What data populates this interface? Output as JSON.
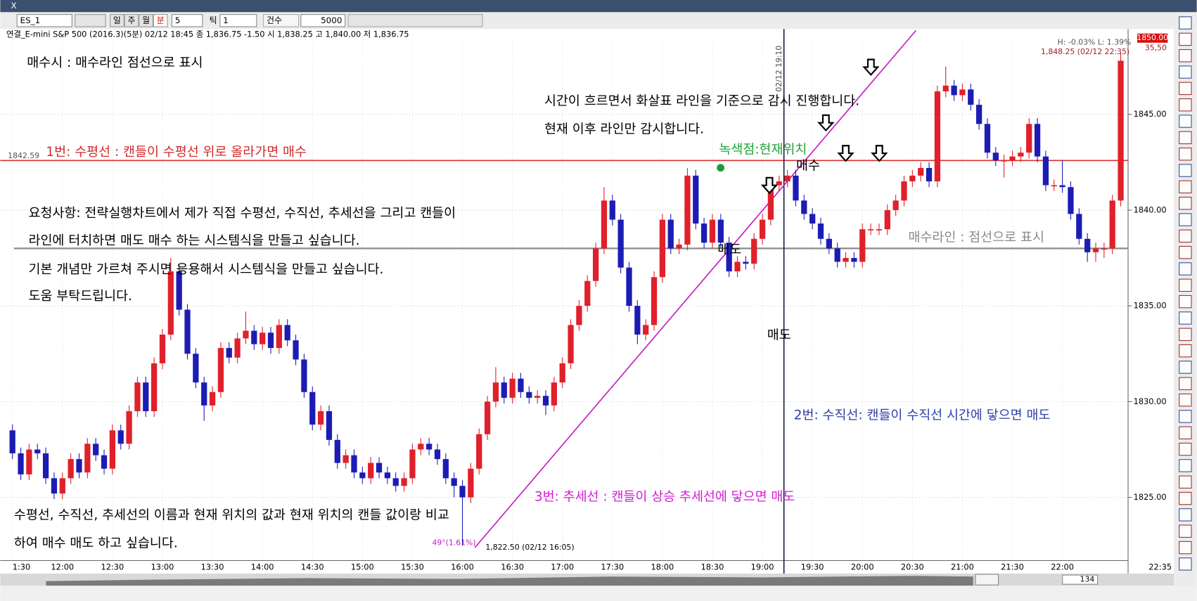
{
  "window_close": "X",
  "toolbar": {
    "symbol": "ES_1",
    "periods": [
      "일",
      "주",
      "월",
      "분"
    ],
    "interval": 5,
    "tick_label": "틱",
    "tick_value": 1,
    "count_label": "건수",
    "count": 5000
  },
  "info_line": "연결_E-mini S&P 500 (2016.3)(5분) 02/12 18:45  종 1,836.75 -1.50  시 1,838.25 고 1,840.00 저 1,836.75",
  "chart_data": {
    "type": "candlestick",
    "up_color": "#e0202a",
    "down_color": "#1c1cb4",
    "open": [
      1828.5,
      1827.3,
      1826.2,
      1827.5,
      1827.3,
      1826.0,
      1825.2,
      1826.0,
      1827.0,
      1826.3,
      1827.8,
      1827.2,
      1826.5,
      1828.5,
      1827.8,
      1829.5,
      1831.0,
      1829.5,
      1832.0,
      1833.5,
      1836.8,
      1834.8,
      1832.5,
      1831.0,
      1829.8,
      1830.5,
      1832.8,
      1832.3,
      1833.3,
      1833.7,
      1833.0,
      1833.6,
      1832.8,
      1834.0,
      1833.2,
      1832.2,
      1830.5,
      1828.8,
      1829.5,
      1828.0,
      1826.8,
      1827.2,
      1826.3,
      1826.0,
      1826.8,
      1826.3,
      1826.0,
      1825.6,
      1826.0,
      1827.5,
      1827.8,
      1827.5,
      1827.0,
      1826.0,
      1825.6,
      1825.0,
      1826.5,
      1828.3,
      1830.0,
      1831.0,
      1830.2,
      1831.2,
      1830.5,
      1830.2,
      1830.3,
      1829.8,
      1831.0,
      1832.0,
      1834.0,
      1835.0,
      1836.3,
      1838.0,
      1840.5,
      1839.5,
      1837.0,
      1835.0,
      1833.5,
      1834.0,
      1836.5,
      1839.5,
      1838.0,
      1838.2,
      1841.8,
      1839.3,
      1838.3,
      1839.5,
      1838.3,
      1836.8,
      1837.3,
      1837.2,
      1838.5,
      1839.5,
      1841.3,
      1841.5,
      1841.8,
      1840.5,
      1839.8,
      1839.3,
      1838.5,
      1838.0,
      1837.3,
      1837.5,
      1837.3,
      1839.0,
      1839.0,
      1839.0,
      1840.0,
      1840.5,
      1841.5,
      1841.8,
      1842.2,
      1841.5,
      1846.2,
      1846.5,
      1846.0,
      1846.3,
      1845.5,
      1844.5,
      1843.0,
      1842.6,
      1842.6,
      1842.8,
      1843.0,
      1844.5,
      1842.8,
      1841.3,
      1841.3,
      1841.2,
      1839.8,
      1838.5,
      1837.8,
      1838.0,
      1838.0,
      1840.5
    ],
    "high": [
      1828.8,
      1827.6,
      1827.8,
      1827.8,
      1827.6,
      1826.3,
      1826.3,
      1827.3,
      1827.3,
      1828.1,
      1828.1,
      1827.5,
      1828.8,
      1828.8,
      1829.8,
      1831.3,
      1831.3,
      1832.3,
      1833.8,
      1837.5,
      1837.1,
      1835.1,
      1832.8,
      1831.3,
      1830.8,
      1833.1,
      1833.1,
      1833.6,
      1834.7,
      1834.0,
      1833.9,
      1833.9,
      1834.3,
      1834.3,
      1833.5,
      1832.5,
      1830.8,
      1829.8,
      1829.8,
      1828.3,
      1827.5,
      1827.5,
      1826.6,
      1827.1,
      1827.1,
      1826.6,
      1826.3,
      1826.3,
      1827.8,
      1828.1,
      1828.1,
      1827.8,
      1827.3,
      1826.3,
      1825.9,
      1826.8,
      1828.6,
      1830.3,
      1831.8,
      1831.3,
      1831.5,
      1831.5,
      1830.8,
      1830.6,
      1830.6,
      1831.3,
      1832.3,
      1834.3,
      1835.3,
      1836.6,
      1838.3,
      1841.2,
      1840.8,
      1839.8,
      1837.3,
      1835.3,
      1834.3,
      1836.8,
      1839.8,
      1839.8,
      1838.5,
      1842.2,
      1842.1,
      1839.6,
      1839.8,
      1839.8,
      1838.6,
      1837.6,
      1837.6,
      1838.8,
      1839.8,
      1841.6,
      1841.8,
      1842.1,
      1842.1,
      1840.8,
      1840.1,
      1839.6,
      1838.8,
      1838.3,
      1837.8,
      1837.8,
      1839.3,
      1839.3,
      1839.3,
      1840.3,
      1840.8,
      1841.8,
      1842.1,
      1842.5,
      1842.5,
      1846.5,
      1847.5,
      1846.8,
      1846.6,
      1846.6,
      1845.8,
      1844.8,
      1843.3,
      1842.9,
      1843.1,
      1843.3,
      1844.8,
      1844.8,
      1843.1,
      1841.6,
      1842.6,
      1841.5,
      1840.1,
      1838.8,
      1838.3,
      1838.3,
      1840.8,
      1848.2
    ],
    "low": [
      1827.0,
      1825.9,
      1825.9,
      1827.0,
      1825.7,
      1824.9,
      1824.9,
      1825.7,
      1826.0,
      1826.0,
      1826.9,
      1826.2,
      1826.2,
      1827.5,
      1827.5,
      1829.2,
      1829.2,
      1829.2,
      1831.7,
      1833.2,
      1834.5,
      1832.2,
      1830.7,
      1829.0,
      1829.5,
      1830.2,
      1832.0,
      1832.0,
      1833.0,
      1832.7,
      1832.7,
      1832.5,
      1832.5,
      1832.9,
      1831.9,
      1830.2,
      1828.5,
      1828.5,
      1827.7,
      1826.5,
      1826.5,
      1826.0,
      1825.7,
      1825.7,
      1826.0,
      1825.7,
      1825.3,
      1825.3,
      1825.7,
      1827.2,
      1827.2,
      1826.7,
      1825.7,
      1825.0,
      1822.5,
      1824.7,
      1826.2,
      1828.0,
      1829.7,
      1829.9,
      1829.9,
      1830.2,
      1829.9,
      1829.9,
      1829.3,
      1829.5,
      1830.7,
      1831.7,
      1833.7,
      1834.7,
      1836.0,
      1837.7,
      1839.2,
      1836.7,
      1834.7,
      1833.0,
      1833.2,
      1833.7,
      1836.2,
      1837.7,
      1837.7,
      1837.9,
      1839.0,
      1838.0,
      1838.0,
      1838.0,
      1836.5,
      1836.5,
      1836.9,
      1836.9,
      1838.2,
      1839.2,
      1841.0,
      1841.2,
      1840.2,
      1839.5,
      1839.0,
      1838.2,
      1837.7,
      1837.0,
      1837.0,
      1837.0,
      1837.0,
      1838.7,
      1838.7,
      1838.7,
      1839.7,
      1840.2,
      1841.2,
      1841.5,
      1841.2,
      1841.2,
      1845.9,
      1845.7,
      1845.7,
      1845.2,
      1844.2,
      1842.7,
      1842.3,
      1841.7,
      1842.3,
      1842.5,
      1842.7,
      1842.5,
      1841.0,
      1841.0,
      1840.9,
      1839.5,
      1838.2,
      1837.3,
      1837.3,
      1837.5,
      1837.7,
      1840.2
    ],
    "close": [
      1827.3,
      1826.2,
      1827.5,
      1827.3,
      1826.0,
      1825.2,
      1826.0,
      1827.0,
      1826.3,
      1827.8,
      1827.2,
      1826.5,
      1828.5,
      1827.8,
      1829.5,
      1831.0,
      1829.5,
      1832.0,
      1833.5,
      1836.8,
      1834.8,
      1832.5,
      1831.0,
      1829.8,
      1830.5,
      1832.8,
      1832.3,
      1833.3,
      1833.7,
      1833.0,
      1833.6,
      1832.8,
      1834.0,
      1833.2,
      1832.2,
      1830.5,
      1828.8,
      1829.5,
      1828.0,
      1826.8,
      1827.2,
      1826.3,
      1826.0,
      1826.8,
      1826.3,
      1826.0,
      1825.6,
      1826.0,
      1827.5,
      1827.8,
      1827.5,
      1827.0,
      1826.0,
      1825.6,
      1825.0,
      1826.5,
      1828.3,
      1830.0,
      1831.0,
      1830.2,
      1831.2,
      1830.5,
      1830.2,
      1830.3,
      1829.8,
      1831.0,
      1832.0,
      1834.0,
      1835.0,
      1836.3,
      1838.0,
      1840.5,
      1839.5,
      1837.0,
      1835.0,
      1833.5,
      1834.0,
      1836.5,
      1839.5,
      1838.0,
      1838.2,
      1841.8,
      1839.3,
      1838.3,
      1839.5,
      1838.3,
      1836.8,
      1837.3,
      1837.2,
      1838.5,
      1839.5,
      1841.3,
      1841.5,
      1841.8,
      1840.5,
      1839.8,
      1839.3,
      1838.5,
      1838.0,
      1837.3,
      1837.5,
      1837.3,
      1839.0,
      1839.0,
      1839.0,
      1840.0,
      1840.5,
      1841.5,
      1841.8,
      1842.2,
      1841.5,
      1846.2,
      1846.5,
      1846.0,
      1846.3,
      1845.5,
      1844.5,
      1843.0,
      1842.6,
      1842.6,
      1842.8,
      1843.0,
      1844.5,
      1842.8,
      1841.3,
      1841.3,
      1841.2,
      1839.8,
      1838.5,
      1837.8,
      1838.0,
      1838.0,
      1840.5,
      1847.8
    ],
    "ylim": [
      1821.7,
      1848.9
    ],
    "yticks": [
      {
        "value": 1825,
        "label": "1825.00"
      },
      {
        "value": 1830,
        "label": "1830.00"
      },
      {
        "value": 1835,
        "label": "1835.00"
      },
      {
        "value": 1840,
        "label": "1840.00"
      },
      {
        "value": 1845,
        "label": "1845.00"
      }
    ],
    "time_labels": [
      "1:30",
      "12:00",
      "12:30",
      "13:00",
      "13:30",
      "14:00",
      "14:30",
      "15:00",
      "15:30",
      "16:00",
      "16:30",
      "17:00",
      "17:30",
      "18:00",
      "18:30",
      "19:00",
      "19:30",
      "20:00",
      "20:30",
      "21:00",
      "21:30",
      "22:00"
    ],
    "last_time": "22:35",
    "hline": {
      "value": 1842.59,
      "color": "#d9302f"
    },
    "buy_line": {
      "value": 1838.0,
      "color": "#8a8a8a"
    },
    "vline": {
      "label": "02/12 19:10",
      "color": "#1a1a40"
    },
    "trendline": {
      "color": "#c21cc2",
      "start_label": "1,822.50 (02/12 16:05)",
      "angle_label": "49°(1.61%)"
    },
    "stats": {
      "hl": "H: -0.03%  L: 1.39%",
      "high_label": "1,848.25 (02/12 22:35)",
      "price_box": "1850.00",
      "change": "35,50"
    },
    "annotations": [
      {
        "text": "매수시 : 매수라인 점선으로 표시",
        "color": "#000000"
      },
      {
        "text": "1번: 수평선 : 캔들이 수평선 위로 올라가면 매수",
        "color": "#d42a2a"
      },
      {
        "text": "녹색점:현재위치",
        "color": "#1fa33a"
      },
      {
        "text": "시간이 흐르면서 화살표 라인을 기준으로 감시 진행합니다.",
        "color": "#000000"
      },
      {
        "text": "현재 이후 라인만 감시합니다.",
        "color": "#000000"
      },
      {
        "text": "매수",
        "color": "#000000"
      },
      {
        "text": "요청사항: 전략실행차트에서 제가 직접 수평선, 수직선, 추세선을 그리고 캔들이",
        "color": "#000000"
      },
      {
        "text": "라인에 터치하면 매도 매수 하는 시스템식을 만들고 싶습니다.",
        "color": "#000000"
      },
      {
        "text": "기본 개념만 가르쳐 주시면 응용해서 시스템식을 만들고 싶습니다.",
        "color": "#000000"
      },
      {
        "text": "도움 부탁드립니다.",
        "color": "#000000"
      },
      {
        "text": "매도",
        "color": "#000000"
      },
      {
        "text": "매도",
        "color": "#000000"
      },
      {
        "text": "매수라인 : 점선으로 표시",
        "color": "#8a8a8a"
      },
      {
        "text": "2번: 수직선: 캔들이 수직선 시간에 닿으면 매도",
        "color": "#2b3fa8"
      },
      {
        "text": "3번: 추세선 : 캔들이 상승 추세선에 닿으면 매도",
        "color": "#d21fd2"
      },
      {
        "text": "수평선, 수직선, 추세선의 이름과 현재 위치의 값과 현재 위치의 캔들 값이랑 비교",
        "color": "#000000"
      },
      {
        "text": "하여 매수 매도 하고 싶습니다.",
        "color": "#000000"
      }
    ],
    "scroll_count": 134
  }
}
